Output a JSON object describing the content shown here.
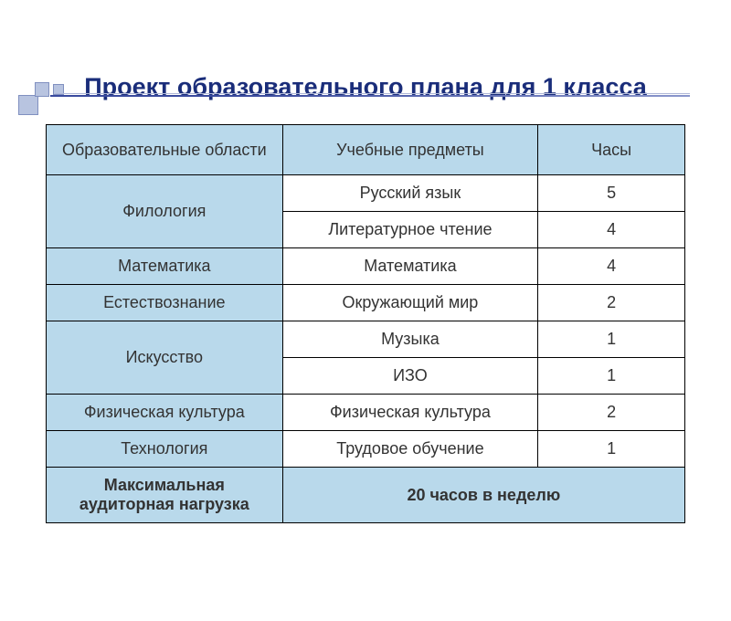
{
  "title": "Проект образовательного плана для 1 класса",
  "colors": {
    "header_bg": "#b9d9eb",
    "area_bg": "#b9d9eb",
    "title_color": "#1a2d7a",
    "border_color": "#000000",
    "text_color": "#333333",
    "decoration_square": "#b8c4e0",
    "decoration_line": "#3a4a9e"
  },
  "table": {
    "headers": {
      "col1": "Образовательные области",
      "col2": "Учебные предметы",
      "col3": "Часы"
    },
    "column_widths": [
      "37%",
      "40%",
      "23%"
    ],
    "rows": [
      {
        "area": "Филология",
        "subjects": [
          {
            "name": "Русский язык",
            "hours": "5"
          },
          {
            "name": "Литературное чтение",
            "hours": "4"
          }
        ]
      },
      {
        "area": "Математика",
        "subjects": [
          {
            "name": "Математика",
            "hours": "4"
          }
        ]
      },
      {
        "area": "Естествознание",
        "subjects": [
          {
            "name": "Окружающий мир",
            "hours": "2"
          }
        ]
      },
      {
        "area": "Искусство",
        "subjects": [
          {
            "name": "Музыка",
            "hours": "1"
          },
          {
            "name": "ИЗО",
            "hours": "1"
          }
        ]
      },
      {
        "area": "Физическая культура",
        "subjects": [
          {
            "name": "Физическая культура",
            "hours": "2"
          }
        ]
      },
      {
        "area": "Технология",
        "subjects": [
          {
            "name": "Трудовое обучение",
            "hours": "1"
          }
        ]
      }
    ],
    "footer": {
      "label": "Максимальная аудиторная нагрузка",
      "value": "20 часов в неделю"
    }
  }
}
